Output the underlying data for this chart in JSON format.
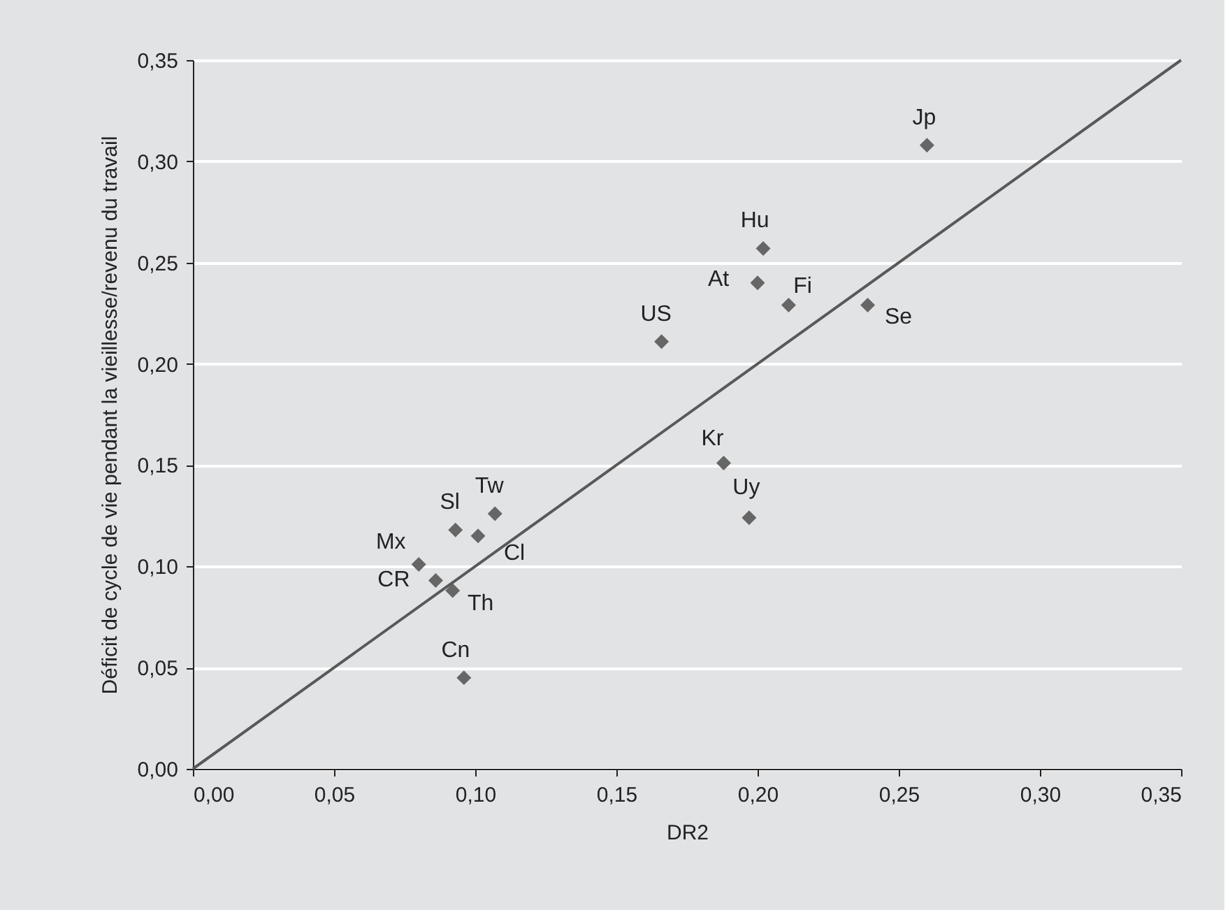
{
  "chart_data": {
    "type": "scatter",
    "xlabel": "DR2",
    "ylabel": "Déficit de cycle de vie pendant la vieillesse/revenu du travail",
    "xlim": [
      0,
      0.35
    ],
    "ylim": [
      0,
      0.35
    ],
    "xticks": [
      {
        "value": 0,
        "label": "0,00"
      },
      {
        "value": 0.05,
        "label": "0,05"
      },
      {
        "value": 0.1,
        "label": "0,10"
      },
      {
        "value": 0.15,
        "label": "0,15"
      },
      {
        "value": 0.2,
        "label": "0,20"
      },
      {
        "value": 0.25,
        "label": "0,25"
      },
      {
        "value": 0.3,
        "label": "0,30"
      },
      {
        "value": 0.35,
        "label": "0,35"
      }
    ],
    "yticks": [
      {
        "value": 0,
        "label": "0,00"
      },
      {
        "value": 0.05,
        "label": "0,05"
      },
      {
        "value": 0.1,
        "label": "0,10"
      },
      {
        "value": 0.15,
        "label": "0,15"
      },
      {
        "value": 0.2,
        "label": "0,20"
      },
      {
        "value": 0.25,
        "label": "0,25"
      },
      {
        "value": 0.3,
        "label": "0,30"
      },
      {
        "value": 0.35,
        "label": "0,35"
      }
    ],
    "grid": "y",
    "marker": "diamond",
    "series": [
      {
        "color": "#666666",
        "x": [
          0.26,
          0.202,
          0.2,
          0.211,
          0.239,
          0.166,
          0.188,
          0.197,
          0.107,
          0.093,
          0.101,
          0.08,
          0.086,
          0.092,
          0.096
        ],
        "values": [
          0.308,
          0.257,
          0.24,
          0.229,
          0.229,
          0.211,
          0.151,
          0.124,
          0.126,
          0.118,
          0.115,
          0.101,
          0.093,
          0.088,
          0.045
        ]
      },
      {
        "type": "line",
        "marker": "none",
        "color": "#595959",
        "x": [
          0,
          0.35
        ],
        "values": [
          0,
          0.35
        ]
      }
    ],
    "annotations": [
      {
        "text": "Jp",
        "x": 0.26,
        "y": 0.308
      },
      {
        "text": "Hu",
        "x": 0.202,
        "y": 0.257
      },
      {
        "text": "At",
        "x": 0.2,
        "y": 0.24
      },
      {
        "text": "Fi",
        "x": 0.211,
        "y": 0.229
      },
      {
        "text": "Se",
        "x": 0.239,
        "y": 0.229
      },
      {
        "text": "US",
        "x": 0.166,
        "y": 0.211
      },
      {
        "text": "Kr",
        "x": 0.188,
        "y": 0.151
      },
      {
        "text": "Uy",
        "x": 0.197,
        "y": 0.124
      },
      {
        "text": "Tw",
        "x": 0.107,
        "y": 0.126
      },
      {
        "text": "Sl",
        "x": 0.093,
        "y": 0.118
      },
      {
        "text": "Cl",
        "x": 0.101,
        "y": 0.115
      },
      {
        "text": "Mx",
        "x": 0.08,
        "y": 0.101
      },
      {
        "text": "CR",
        "x": 0.086,
        "y": 0.093
      },
      {
        "text": "Th",
        "x": 0.092,
        "y": 0.088
      },
      {
        "text": "Cn",
        "x": 0.096,
        "y": 0.045
      }
    ]
  }
}
